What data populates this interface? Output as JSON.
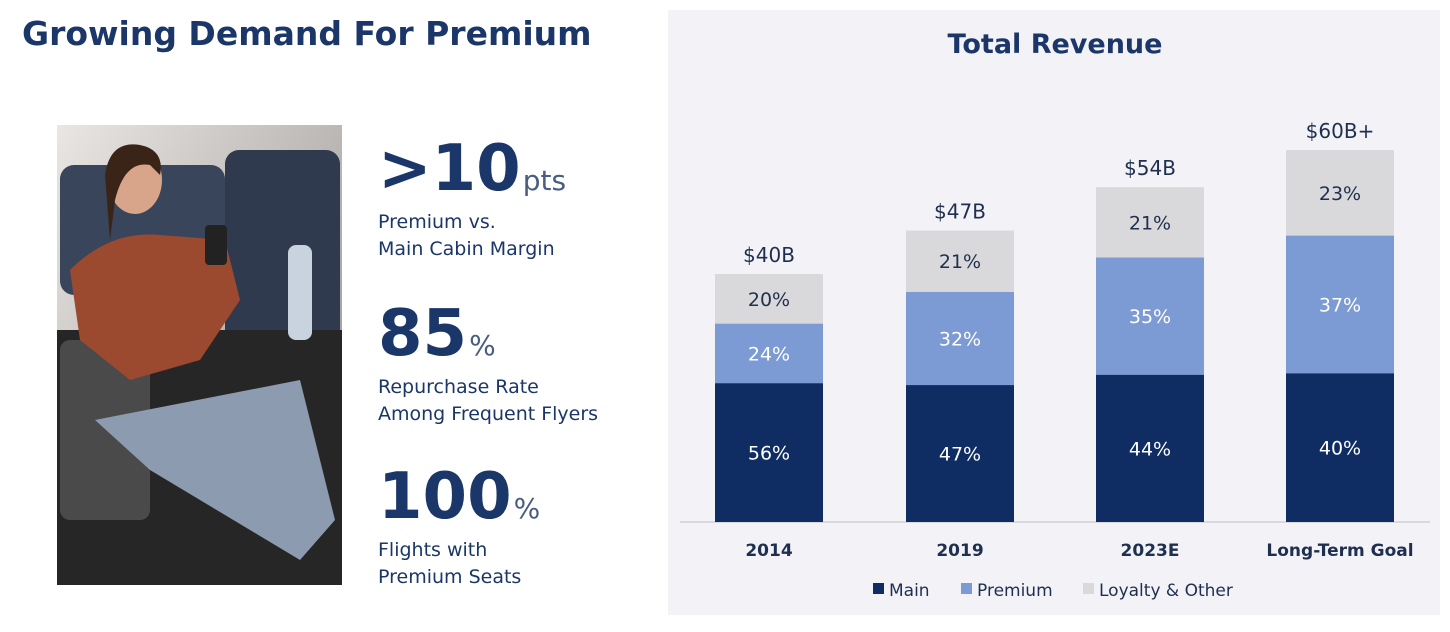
{
  "header": {
    "title": "Growing Demand For Premium"
  },
  "stats": [
    {
      "value": ">10",
      "unit": "pts",
      "lines": [
        "Premium vs.",
        "Main Cabin Margin"
      ]
    },
    {
      "value": 85,
      "unit": "%",
      "lines": [
        "Repurchase Rate",
        "Among Frequent Flyers"
      ]
    },
    {
      "value": 100,
      "unit": "%",
      "lines": [
        "Flights with",
        "Premium Seats"
      ]
    }
  ],
  "chart_data": {
    "type": "bar",
    "stacked": true,
    "title": "Total Revenue",
    "categories": [
      "2014",
      "2019",
      "2023E",
      "Long-Term Goal"
    ],
    "totals": {
      "values": [
        40,
        47,
        54,
        60
      ],
      "value_labels": [
        "$40B",
        "$47B",
        "$54B",
        "$60B+"
      ]
    },
    "series": [
      {
        "name": "Main",
        "color": "#0f2d63",
        "values": [
          56,
          47,
          44,
          40
        ],
        "value_labels": [
          "56%",
          "47%",
          "44%",
          "40%"
        ]
      },
      {
        "name": "Premium",
        "color": "#7c9bd4",
        "values": [
          24,
          32,
          35,
          37
        ],
        "value_labels": [
          "24%",
          "32%",
          "35%",
          "37%"
        ]
      },
      {
        "name": "Loyalty & Other",
        "color": "#d9d9db",
        "values": [
          20,
          21,
          21,
          23
        ],
        "value_labels": [
          "20%",
          "21%",
          "21%",
          "23%"
        ]
      }
    ],
    "legend": "bottom"
  }
}
